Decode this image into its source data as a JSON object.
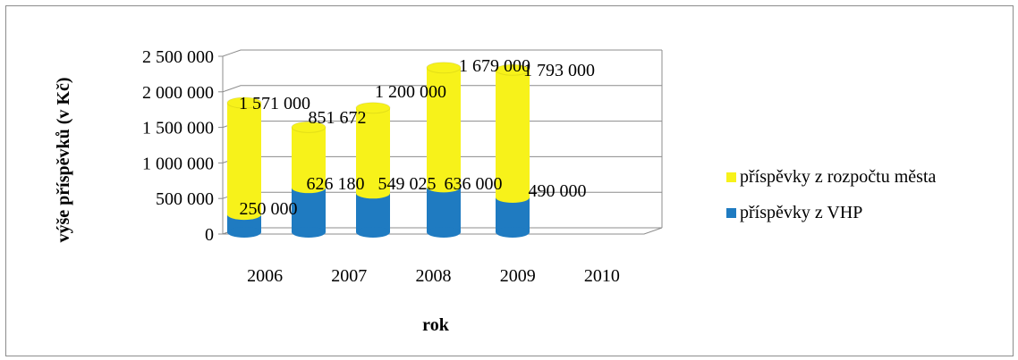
{
  "chart_data": {
    "type": "bar",
    "stacked": true,
    "style": "3d-cylinder",
    "title": "",
    "xlabel": "rok",
    "ylabel": "výše příspěvků (v Kč)",
    "categories": [
      "2006",
      "2007",
      "2008",
      "2009",
      "2010"
    ],
    "ylim": [
      0,
      2500000
    ],
    "yticks": [
      "0",
      "500 000",
      "1 000 000",
      "1 500 000",
      "2 000 000",
      "2 500 000"
    ],
    "ytick_values": [
      0,
      500000,
      1000000,
      1500000,
      2000000,
      2500000
    ],
    "grid": true,
    "legend_position": "right",
    "series": [
      {
        "name": "příspěvky z VHP",
        "values": [
          250000,
          626180,
          549025,
          636000,
          490000
        ],
        "labels": [
          "250 000",
          "626 180",
          "549 025",
          "636 000",
          "490 000"
        ],
        "color": "#1f7bc1"
      },
      {
        "name": "příspěvky z rozpočtu města",
        "values": [
          1571000,
          851672,
          1200000,
          1679000,
          1793000
        ],
        "labels": [
          "1 571 000",
          "851 672",
          "1 200 000",
          "1 679 000",
          "1 793 000"
        ],
        "color": "#f7f21a"
      }
    ]
  }
}
